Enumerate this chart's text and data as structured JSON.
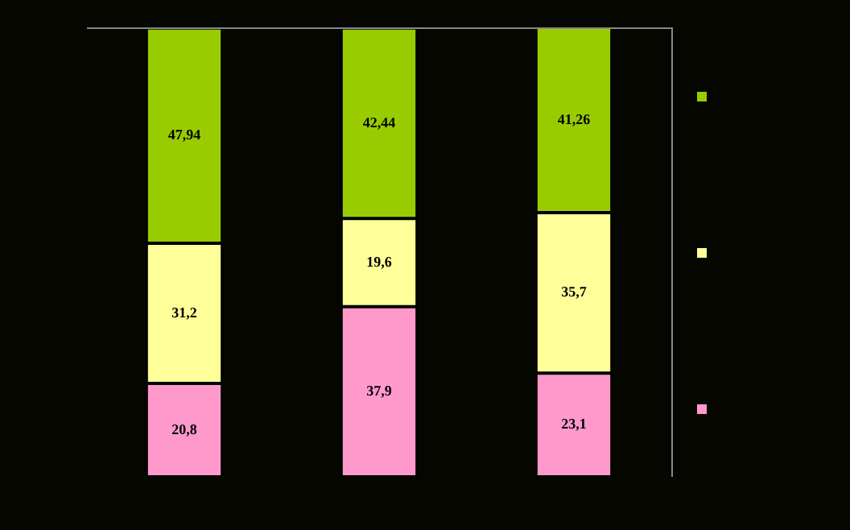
{
  "chart_data": {
    "type": "bar",
    "stacked": true,
    "categories": [
      null,
      null,
      null
    ],
    "series": [
      {
        "color": "#ff99cc",
        "values": [
          20.8,
          37.9,
          23.1
        ],
        "value_labels": [
          "20,8",
          "37,9",
          "23,1"
        ]
      },
      {
        "color": "#ffff99",
        "values": [
          31.2,
          19.6,
          35.7
        ],
        "value_labels": [
          "31,2",
          "19,6",
          "35,7"
        ]
      },
      {
        "color": "#99cc00",
        "values": [
          47.94,
          42.44,
          41.26
        ],
        "value_labels": [
          "47,94",
          "42,44",
          "41,26"
        ]
      }
    ]
  }
}
